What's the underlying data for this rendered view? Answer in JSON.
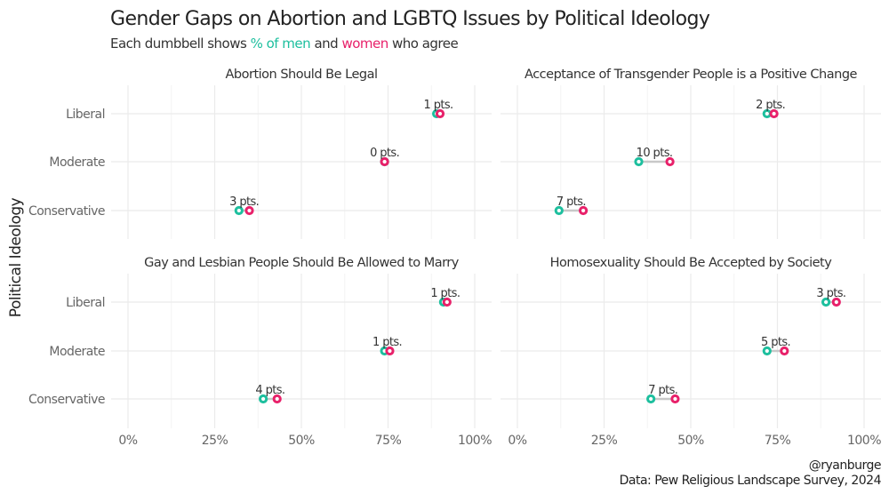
{
  "colors": {
    "men": "#1dbf9e",
    "women": "#e8216a",
    "segment": "#c8c8c8",
    "text": "#222222"
  },
  "chart_data": {
    "type": "dumbbell",
    "title": "Gender Gaps on Abortion and LGBTQ Issues by Political Ideology",
    "subtitle": {
      "prefix": "Each dumbbell shows ",
      "men_label": "% of men",
      "middle": " and ",
      "women_label": "women",
      "suffix": " who agree"
    },
    "ylabel": "Political Ideology",
    "xlabel": "",
    "xlim": [
      0,
      100
    ],
    "x_ticks": [
      0,
      25,
      50,
      75,
      100
    ],
    "x_tick_labels": [
      "0%",
      "25%",
      "50%",
      "75%",
      "100%"
    ],
    "categories": [
      "Liberal",
      "Moderate",
      "Conservative"
    ],
    "grid": true,
    "legend": "none (encoded in subtitle colors)",
    "facets": [
      {
        "title": "Abortion Should Be Legal",
        "rows": [
          {
            "ideology": "Liberal",
            "men": 89,
            "women": 90,
            "gap_label": "1 pts."
          },
          {
            "ideology": "Moderate",
            "men": 74,
            "women": 74,
            "gap_label": "0 pts."
          },
          {
            "ideology": "Conservative",
            "men": 32,
            "women": 35,
            "gap_label": "3 pts."
          }
        ]
      },
      {
        "title": "Acceptance of Transgender People is a Positive Change",
        "rows": [
          {
            "ideology": "Liberal",
            "men": 72,
            "women": 74,
            "gap_label": "2 pts."
          },
          {
            "ideology": "Moderate",
            "men": 35,
            "women": 44,
            "gap_label": "10 pts."
          },
          {
            "ideology": "Conservative",
            "men": 12,
            "women": 19,
            "gap_label": "7 pts."
          }
        ]
      },
      {
        "title": "Gay and Lesbian People Should Be Allowed to Marry",
        "rows": [
          {
            "ideology": "Liberal",
            "men": 91,
            "women": 92,
            "gap_label": "1 pts."
          },
          {
            "ideology": "Moderate",
            "men": 74,
            "women": 75.5,
            "gap_label": "1 pts."
          },
          {
            "ideology": "Conservative",
            "men": 39,
            "women": 43,
            "gap_label": "4 pts."
          }
        ]
      },
      {
        "title": "Homosexuality Should Be Accepted by Society",
        "rows": [
          {
            "ideology": "Liberal",
            "men": 89,
            "women": 92,
            "gap_label": "3 pts."
          },
          {
            "ideology": "Moderate",
            "men": 72,
            "women": 77,
            "gap_label": "5 pts."
          },
          {
            "ideology": "Conservative",
            "men": 38.5,
            "women": 45.5,
            "gap_label": "7 pts."
          }
        ]
      }
    ]
  },
  "caption": {
    "handle": "@ryanburge",
    "source": "Data: Pew Religious Landscape Survey, 2024"
  }
}
